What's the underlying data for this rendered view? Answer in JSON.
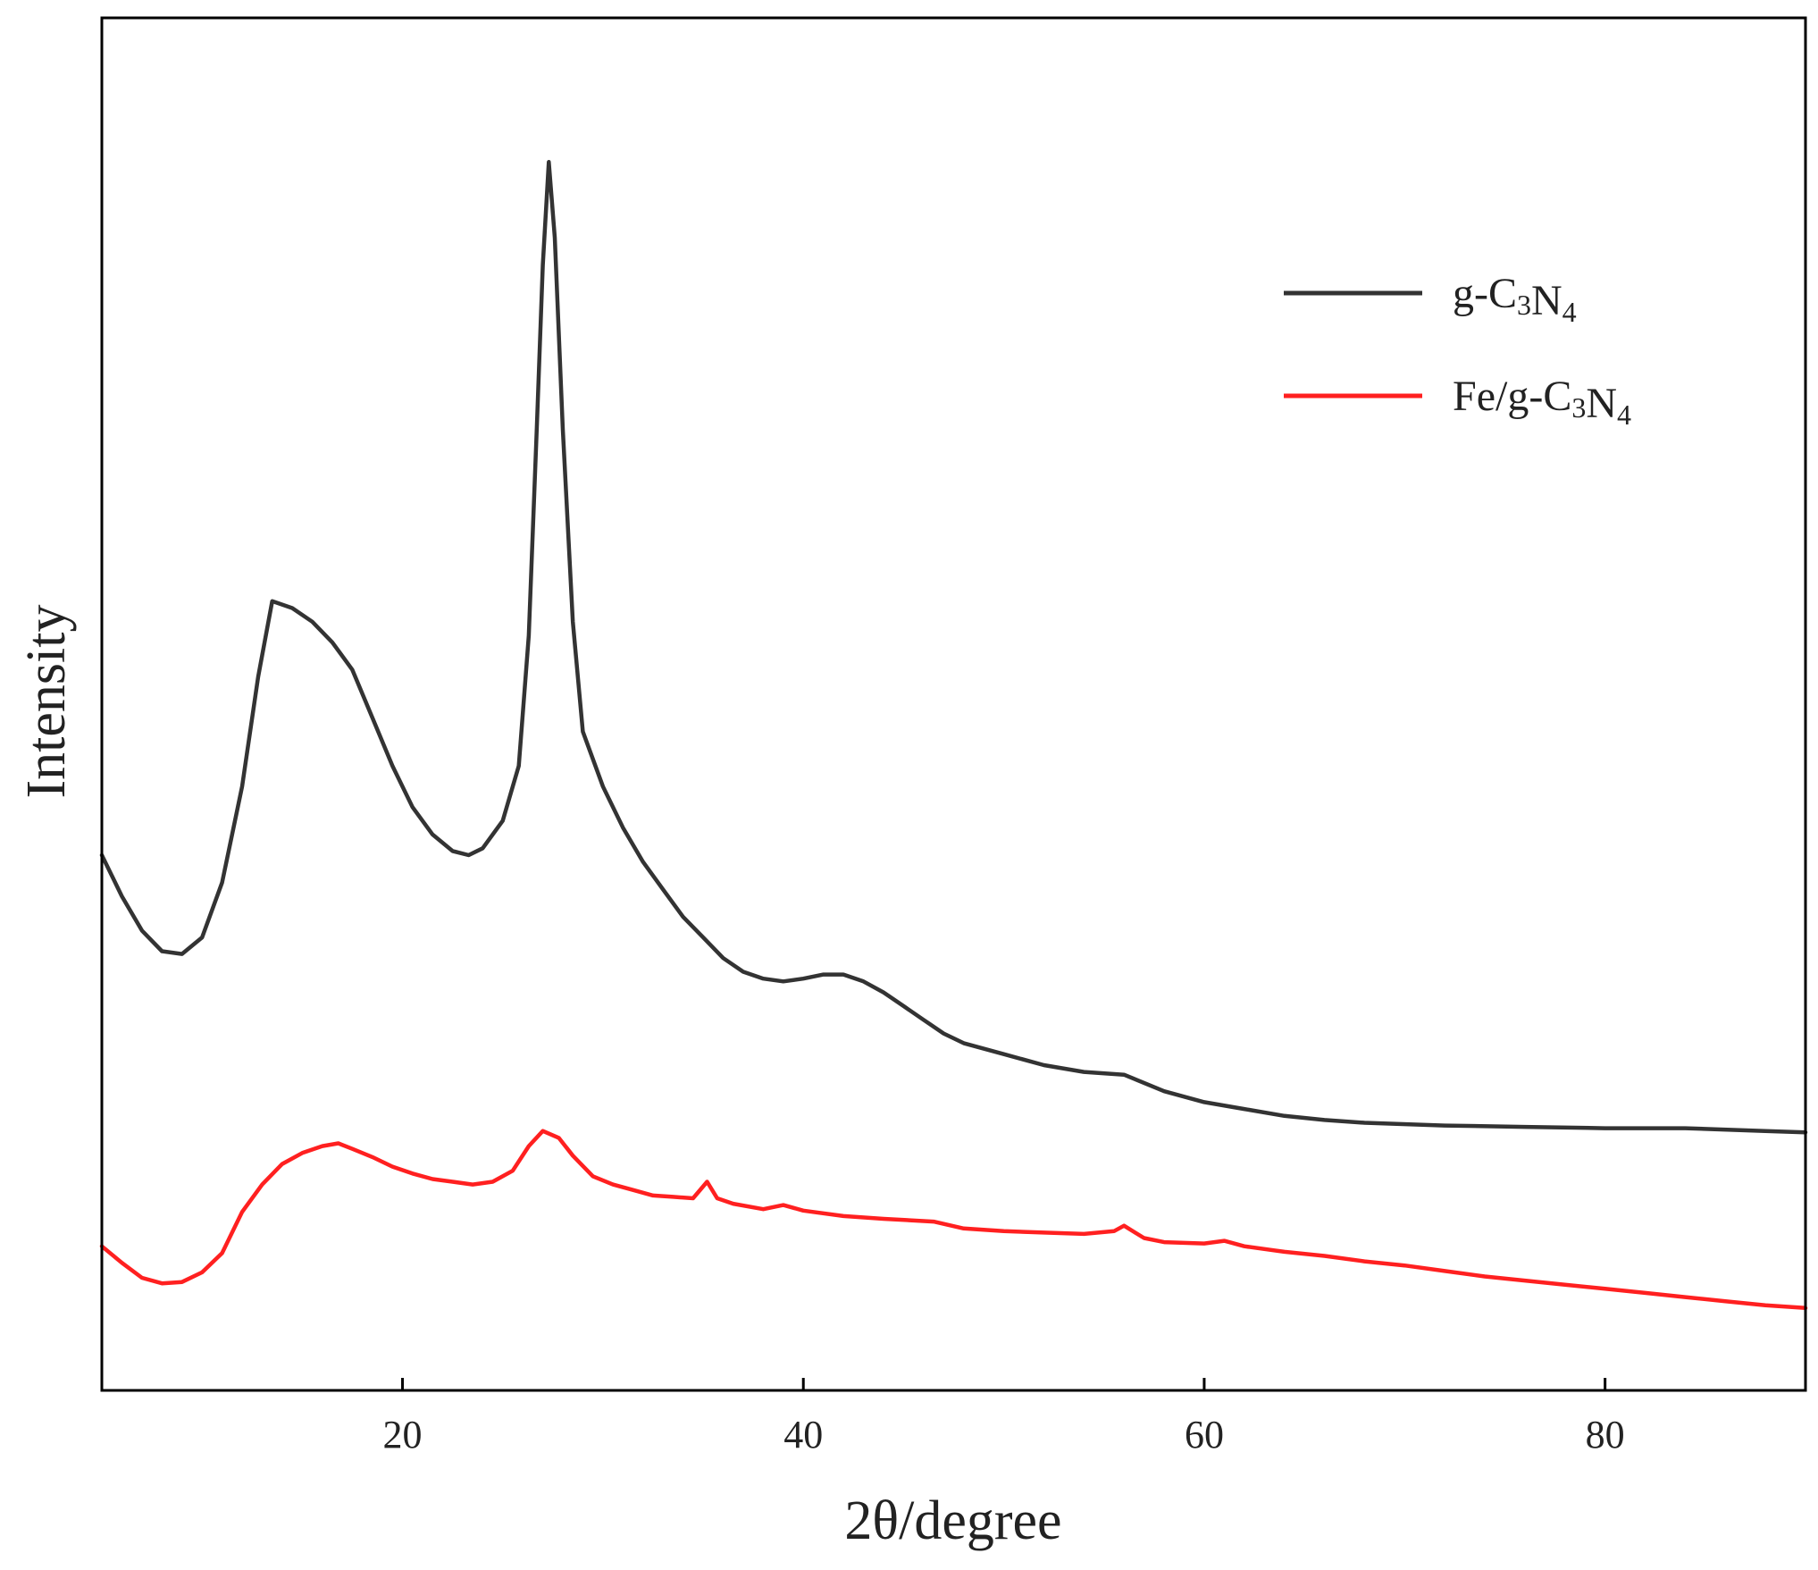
{
  "colors": {
    "g_c3n4": "#333333",
    "fe_g_c3n4": "#ff2020",
    "axis": "#000000"
  },
  "chart_data": {
    "type": "line",
    "xlabel": "2θ/degree",
    "ylabel": "Intensity",
    "xlim": [
      5,
      90
    ],
    "ylim": [
      0,
      100
    ],
    "x_ticks": [
      20,
      40,
      60,
      80
    ],
    "y_tick_labels_shown": false,
    "grid": false,
    "legend_position": "top-right",
    "series": [
      {
        "name": "g-C₃N₄",
        "name_parts": {
          "pre": "g-C",
          "sub1": "3",
          "mid": "N",
          "sub2": "4"
        },
        "color": "#333333",
        "points": [
          [
            5,
            39
          ],
          [
            6,
            36
          ],
          [
            7,
            33.5
          ],
          [
            8,
            32
          ],
          [
            9,
            31.8
          ],
          [
            10,
            33
          ],
          [
            11,
            37
          ],
          [
            12,
            44
          ],
          [
            12.8,
            52
          ],
          [
            13.5,
            57.5
          ],
          [
            14.5,
            57
          ],
          [
            15.5,
            56
          ],
          [
            16.5,
            54.5
          ],
          [
            17.5,
            52.5
          ],
          [
            18.5,
            49
          ],
          [
            19.5,
            45.5
          ],
          [
            20.5,
            42.5
          ],
          [
            21.5,
            40.5
          ],
          [
            22.5,
            39.3
          ],
          [
            23.3,
            39
          ],
          [
            24,
            39.5
          ],
          [
            25,
            41.5
          ],
          [
            25.8,
            45.5
          ],
          [
            26.3,
            55
          ],
          [
            26.7,
            70
          ],
          [
            27,
            82
          ],
          [
            27.3,
            89.5
          ],
          [
            27.6,
            84
          ],
          [
            28,
            70
          ],
          [
            28.5,
            56
          ],
          [
            29,
            48
          ],
          [
            30,
            44
          ],
          [
            31,
            41
          ],
          [
            32,
            38.5
          ],
          [
            33,
            36.5
          ],
          [
            34,
            34.5
          ],
          [
            35,
            33
          ],
          [
            36,
            31.5
          ],
          [
            37,
            30.5
          ],
          [
            38,
            30
          ],
          [
            39,
            29.8
          ],
          [
            40,
            30
          ],
          [
            41,
            30.3
          ],
          [
            42,
            30.3
          ],
          [
            43,
            29.8
          ],
          [
            44,
            29
          ],
          [
            45,
            28
          ],
          [
            46,
            27
          ],
          [
            47,
            26
          ],
          [
            48,
            25.3
          ],
          [
            50,
            24.5
          ],
          [
            52,
            23.7
          ],
          [
            54,
            23.2
          ],
          [
            56,
            23
          ],
          [
            58,
            21.8
          ],
          [
            60,
            21
          ],
          [
            62,
            20.5
          ],
          [
            64,
            20
          ],
          [
            66,
            19.7
          ],
          [
            68,
            19.5
          ],
          [
            72,
            19.3
          ],
          [
            76,
            19.2
          ],
          [
            80,
            19.1
          ],
          [
            84,
            19.1
          ],
          [
            88,
            18.9
          ],
          [
            90,
            18.8
          ]
        ]
      },
      {
        "name": "Fe/g-C₃N₄",
        "name_parts": {
          "pre": "Fe/g-C",
          "sub1": "3",
          "mid": "N",
          "sub2": "4"
        },
        "color": "#ff2020",
        "points": [
          [
            5,
            10.5
          ],
          [
            6,
            9.3
          ],
          [
            7,
            8.2
          ],
          [
            8,
            7.8
          ],
          [
            9,
            7.9
          ],
          [
            10,
            8.6
          ],
          [
            11,
            10
          ],
          [
            12,
            13
          ],
          [
            13,
            15
          ],
          [
            14,
            16.5
          ],
          [
            15,
            17.3
          ],
          [
            16,
            17.8
          ],
          [
            16.8,
            18
          ],
          [
            17.5,
            17.6
          ],
          [
            18.5,
            17
          ],
          [
            19.5,
            16.3
          ],
          [
            20.5,
            15.8
          ],
          [
            21.5,
            15.4
          ],
          [
            22.5,
            15.2
          ],
          [
            23.5,
            15
          ],
          [
            24.5,
            15.2
          ],
          [
            25.5,
            16
          ],
          [
            26.3,
            17.8
          ],
          [
            27,
            18.9
          ],
          [
            27.8,
            18.4
          ],
          [
            28.5,
            17.1
          ],
          [
            29.5,
            15.6
          ],
          [
            30.5,
            15
          ],
          [
            31.5,
            14.6
          ],
          [
            32.5,
            14.2
          ],
          [
            33.5,
            14.1
          ],
          [
            34.5,
            14
          ],
          [
            35.2,
            15.2
          ],
          [
            35.7,
            14
          ],
          [
            36.5,
            13.6
          ],
          [
            38,
            13.2
          ],
          [
            39,
            13.5
          ],
          [
            40,
            13.1
          ],
          [
            42,
            12.7
          ],
          [
            44,
            12.5
          ],
          [
            46.5,
            12.3
          ],
          [
            48,
            11.8
          ],
          [
            50,
            11.6
          ],
          [
            52,
            11.5
          ],
          [
            54,
            11.4
          ],
          [
            55.5,
            11.6
          ],
          [
            56,
            12
          ],
          [
            57,
            11.1
          ],
          [
            58,
            10.8
          ],
          [
            60,
            10.7
          ],
          [
            61,
            10.9
          ],
          [
            62,
            10.5
          ],
          [
            64,
            10.1
          ],
          [
            66,
            9.8
          ],
          [
            68,
            9.4
          ],
          [
            70,
            9.1
          ],
          [
            72,
            8.7
          ],
          [
            74,
            8.3
          ],
          [
            76,
            8
          ],
          [
            78,
            7.7
          ],
          [
            80,
            7.4
          ],
          [
            82,
            7.1
          ],
          [
            84,
            6.8
          ],
          [
            86,
            6.5
          ],
          [
            88,
            6.2
          ],
          [
            90,
            6
          ]
        ]
      }
    ]
  }
}
